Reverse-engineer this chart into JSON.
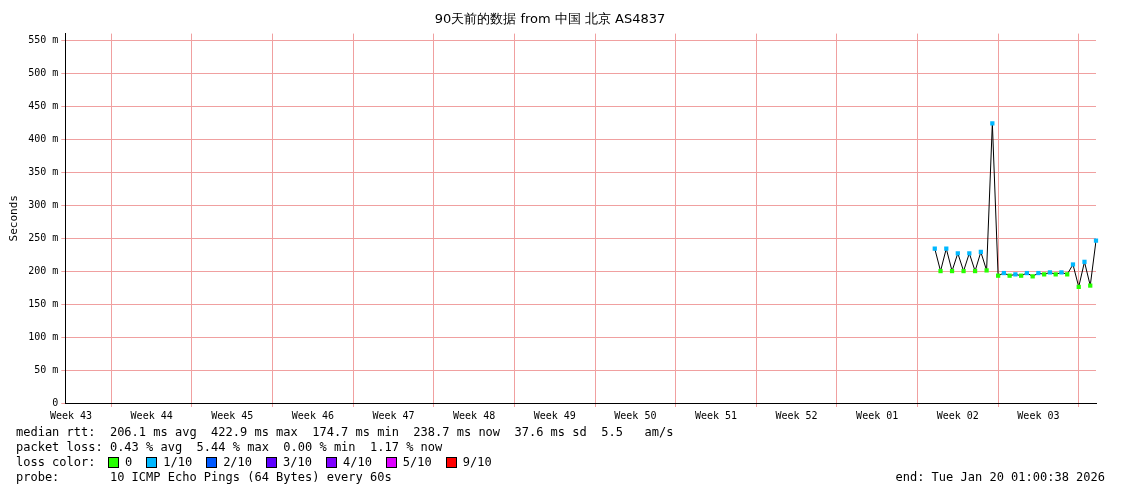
{
  "chart_data": {
    "type": "line",
    "title": "90天前的数据 from 中国 北京 AS4837",
    "ylabel": "Seconds",
    "categories": [
      null,
      "Week 43",
      null,
      null,
      null,
      null,
      null,
      null,
      null,
      null,
      null,
      null,
      null,
      null,
      null,
      "Week 44",
      null,
      null,
      null,
      null,
      null,
      null,
      null,
      null,
      null,
      null,
      null,
      null,
      null,
      "Week 45",
      null,
      null,
      null,
      null,
      null,
      null,
      null,
      null,
      null,
      null,
      null,
      null,
      null,
      "Week 46",
      null,
      null,
      null,
      null,
      null,
      null,
      null,
      null,
      null,
      null,
      null,
      null,
      null,
      "Week 47",
      null,
      null,
      null,
      null,
      null,
      null,
      null,
      null,
      null,
      null,
      null,
      null,
      null,
      "Week 48",
      null,
      null,
      null,
      null,
      null,
      null,
      null,
      null,
      null,
      null,
      null,
      null,
      null,
      "Week 49",
      null,
      null,
      null,
      null,
      null,
      null,
      null,
      null,
      null,
      null,
      null,
      null,
      null,
      "Week 50",
      null,
      null,
      null,
      null,
      null,
      null,
      null,
      null,
      null,
      null,
      null,
      null,
      null,
      "Week 51",
      null,
      null,
      null,
      null,
      null,
      null,
      null,
      null,
      null,
      null,
      null,
      null,
      null,
      "Week 52",
      null,
      null,
      null,
      null,
      null,
      null,
      null,
      null,
      null,
      null,
      null,
      null,
      null,
      "Week 01",
      null,
      null,
      null,
      null,
      null,
      null,
      null,
      null,
      null,
      null,
      null,
      null,
      null,
      "Week 02",
      null,
      null,
      null,
      null,
      null,
      null,
      null,
      null,
      null,
      null,
      null,
      null,
      null,
      "Week 03",
      null,
      null,
      null,
      null,
      null,
      null,
      null,
      null,
      null,
      null
    ],
    "ylim": [
      0,
      560
    ],
    "yticks": [
      0,
      {
        "value": 50,
        "label": "50 m"
      },
      {
        "value": 100,
        "label": "100 m"
      },
      {
        "value": 150,
        "label": "150 m"
      },
      {
        "value": 200,
        "label": "200 m"
      },
      {
        "value": 250,
        "label": "250 m"
      },
      {
        "value": 300,
        "label": "300 m"
      },
      {
        "value": 350,
        "label": "350 m"
      },
      {
        "value": 400,
        "label": "400 m"
      },
      {
        "value": 450,
        "label": "450 m"
      },
      {
        "value": 500,
        "label": "500 m"
      },
      {
        "value": 550,
        "label": "550 m"
      }
    ],
    "grid": true,
    "legend": "bottom",
    "legend_title": "loss color:",
    "series": [
      {
        "type": "line",
        "color": "#000000",
        "marker": "none",
        "values": [
          null,
          null,
          null,
          null,
          null,
          null,
          null,
          null,
          null,
          null,
          null,
          null,
          null,
          null,
          null,
          null,
          null,
          null,
          null,
          null,
          null,
          null,
          null,
          null,
          null,
          null,
          null,
          null,
          null,
          null,
          null,
          null,
          null,
          null,
          null,
          null,
          null,
          null,
          null,
          null,
          null,
          null,
          null,
          null,
          null,
          null,
          null,
          null,
          null,
          null,
          null,
          null,
          null,
          null,
          null,
          null,
          null,
          null,
          null,
          null,
          null,
          null,
          null,
          null,
          null,
          null,
          null,
          null,
          null,
          null,
          null,
          null,
          null,
          null,
          null,
          null,
          null,
          null,
          null,
          null,
          null,
          null,
          null,
          null,
          null,
          null,
          null,
          null,
          null,
          null,
          null,
          null,
          null,
          null,
          null,
          null,
          null,
          null,
          null,
          null,
          null,
          null,
          null,
          null,
          null,
          null,
          null,
          null,
          null,
          null,
          null,
          null,
          null,
          null,
          null,
          null,
          null,
          null,
          null,
          null,
          null,
          null,
          null,
          null,
          null,
          null,
          null,
          null,
          null,
          null,
          null,
          null,
          null,
          null,
          null,
          null,
          null,
          null,
          null,
          null,
          null,
          null,
          null,
          null,
          null,
          null,
          null,
          null,
          null,
          null,
          null,
          234,
          200,
          234,
          200,
          227,
          200,
          227,
          200,
          229,
          201,
          424,
          193,
          197,
          193,
          195,
          193,
          197,
          192,
          197,
          195,
          198,
          195,
          198,
          195,
          210,
          176,
          214,
          178,
          246
        ]
      },
      {
        "type": "scatter",
        "name": "0",
        "color": "#26ff00",
        "marker": "square",
        "values": [
          null,
          null,
          null,
          null,
          null,
          null,
          null,
          null,
          null,
          null,
          null,
          null,
          null,
          null,
          null,
          null,
          null,
          null,
          null,
          null,
          null,
          null,
          null,
          null,
          null,
          null,
          null,
          null,
          null,
          null,
          null,
          null,
          null,
          null,
          null,
          null,
          null,
          null,
          null,
          null,
          null,
          null,
          null,
          null,
          null,
          null,
          null,
          null,
          null,
          null,
          null,
          null,
          null,
          null,
          null,
          null,
          null,
          null,
          null,
          null,
          null,
          null,
          null,
          null,
          null,
          null,
          null,
          null,
          null,
          null,
          null,
          null,
          null,
          null,
          null,
          null,
          null,
          null,
          null,
          null,
          null,
          null,
          null,
          null,
          null,
          null,
          null,
          null,
          null,
          null,
          null,
          null,
          null,
          null,
          null,
          null,
          null,
          null,
          null,
          null,
          null,
          null,
          null,
          null,
          null,
          null,
          null,
          null,
          null,
          null,
          null,
          null,
          null,
          null,
          null,
          null,
          null,
          null,
          null,
          null,
          null,
          null,
          null,
          null,
          null,
          null,
          null,
          null,
          null,
          null,
          null,
          null,
          null,
          null,
          null,
          null,
          null,
          null,
          null,
          null,
          null,
          null,
          null,
          null,
          null,
          null,
          null,
          null,
          null,
          null,
          null,
          null,
          200,
          null,
          200,
          null,
          200,
          null,
          200,
          null,
          201,
          null,
          193,
          null,
          193,
          null,
          193,
          null,
          192,
          null,
          195,
          null,
          195,
          null,
          195,
          null,
          176,
          null,
          178,
          null
        ]
      },
      {
        "type": "scatter",
        "name": "1/10",
        "color": "#00b8ff",
        "marker": "square",
        "values": [
          null,
          null,
          null,
          null,
          null,
          null,
          null,
          null,
          null,
          null,
          null,
          null,
          null,
          null,
          null,
          null,
          null,
          null,
          null,
          null,
          null,
          null,
          null,
          null,
          null,
          null,
          null,
          null,
          null,
          null,
          null,
          null,
          null,
          null,
          null,
          null,
          null,
          null,
          null,
          null,
          null,
          null,
          null,
          null,
          null,
          null,
          null,
          null,
          null,
          null,
          null,
          null,
          null,
          null,
          null,
          null,
          null,
          null,
          null,
          null,
          null,
          null,
          null,
          null,
          null,
          null,
          null,
          null,
          null,
          null,
          null,
          null,
          null,
          null,
          null,
          null,
          null,
          null,
          null,
          null,
          null,
          null,
          null,
          null,
          null,
          null,
          null,
          null,
          null,
          null,
          null,
          null,
          null,
          null,
          null,
          null,
          null,
          null,
          null,
          null,
          null,
          null,
          null,
          null,
          null,
          null,
          null,
          null,
          null,
          null,
          null,
          null,
          null,
          null,
          null,
          null,
          null,
          null,
          null,
          null,
          null,
          null,
          null,
          null,
          null,
          null,
          null,
          null,
          null,
          null,
          null,
          null,
          null,
          null,
          null,
          null,
          null,
          null,
          null,
          null,
          null,
          null,
          null,
          null,
          null,
          null,
          null,
          null,
          null,
          null,
          null,
          234,
          null,
          234,
          null,
          227,
          null,
          227,
          null,
          229,
          null,
          424,
          null,
          197,
          null,
          195,
          null,
          197,
          null,
          197,
          null,
          198,
          null,
          198,
          null,
          210,
          null,
          214,
          null,
          246
        ]
      },
      {
        "type": "scatter",
        "name": "2/10",
        "color": "#0059ff",
        "marker": "square",
        "values": [
          null,
          null,
          null,
          null,
          null,
          null,
          null,
          null,
          null,
          null,
          null,
          null,
          null,
          null,
          null,
          null,
          null,
          null,
          null,
          null,
          null,
          null,
          null,
          null,
          null,
          null,
          null,
          null,
          null,
          null,
          null,
          null,
          null,
          null,
          null,
          null,
          null,
          null,
          null,
          null,
          null,
          null,
          null,
          null,
          null,
          null,
          null,
          null,
          null,
          null,
          null,
          null,
          null,
          null,
          null,
          null,
          null,
          null,
          null,
          null,
          null,
          null,
          null,
          null,
          null,
          null,
          null,
          null,
          null,
          null,
          null,
          null,
          null,
          null,
          null,
          null,
          null,
          null,
          null,
          null,
          null,
          null,
          null,
          null,
          null,
          null,
          null,
          null,
          null,
          null,
          null,
          null,
          null,
          null,
          null,
          null,
          null,
          null,
          null,
          null,
          null,
          null,
          null,
          null,
          null,
          null,
          null,
          null,
          null,
          null,
          null,
          null,
          null,
          null,
          null,
          null,
          null,
          null,
          null,
          null,
          null,
          null,
          null,
          null,
          null,
          null,
          null,
          null,
          null,
          null,
          null,
          null,
          null,
          null,
          null,
          null,
          null,
          null,
          null,
          null,
          null,
          null,
          null,
          null,
          null,
          null,
          null,
          null,
          null,
          null,
          null,
          null,
          null,
          null,
          null,
          null,
          null,
          null,
          null,
          null,
          null,
          null,
          null,
          null,
          null,
          null,
          null,
          null,
          null,
          null,
          null,
          null,
          null,
          null,
          null,
          null,
          null,
          null,
          null,
          null
        ]
      },
      {
        "type": "scatter",
        "name": "3/10",
        "color": "#5e00ff",
        "marker": "square",
        "values": [
          null,
          null,
          null,
          null,
          null,
          null,
          null,
          null,
          null,
          null,
          null,
          null,
          null,
          null,
          null,
          null,
          null,
          null,
          null,
          null,
          null,
          null,
          null,
          null,
          null,
          null,
          null,
          null,
          null,
          null,
          null,
          null,
          null,
          null,
          null,
          null,
          null,
          null,
          null,
          null,
          null,
          null,
          null,
          null,
          null,
          null,
          null,
          null,
          null,
          null,
          null,
          null,
          null,
          null,
          null,
          null,
          null,
          null,
          null,
          null,
          null,
          null,
          null,
          null,
          null,
          null,
          null,
          null,
          null,
          null,
          null,
          null,
          null,
          null,
          null,
          null,
          null,
          null,
          null,
          null,
          null,
          null,
          null,
          null,
          null,
          null,
          null,
          null,
          null,
          null,
          null,
          null,
          null,
          null,
          null,
          null,
          null,
          null,
          null,
          null,
          null,
          null,
          null,
          null,
          null,
          null,
          null,
          null,
          null,
          null,
          null,
          null,
          null,
          null,
          null,
          null,
          null,
          null,
          null,
          null,
          null,
          null,
          null,
          null,
          null,
          null,
          null,
          null,
          null,
          null,
          null,
          null,
          null,
          null,
          null,
          null,
          null,
          null,
          null,
          null,
          null,
          null,
          null,
          null,
          null,
          null,
          null,
          null,
          null,
          null,
          null,
          null,
          null,
          null,
          null,
          null,
          null,
          null,
          null,
          null,
          null,
          null,
          null,
          null,
          null,
          null,
          null,
          null,
          null,
          null,
          null,
          null,
          null,
          null,
          null,
          null,
          null,
          null,
          null,
          null
        ]
      },
      {
        "type": "scatter",
        "name": "4/10",
        "color": "#7e00ff",
        "marker": "square",
        "values": [
          null,
          null,
          null,
          null,
          null,
          null,
          null,
          null,
          null,
          null,
          null,
          null,
          null,
          null,
          null,
          null,
          null,
          null,
          null,
          null,
          null,
          null,
          null,
          null,
          null,
          null,
          null,
          null,
          null,
          null,
          null,
          null,
          null,
          null,
          null,
          null,
          null,
          null,
          null,
          null,
          null,
          null,
          null,
          null,
          null,
          null,
          null,
          null,
          null,
          null,
          null,
          null,
          null,
          null,
          null,
          null,
          null,
          null,
          null,
          null,
          null,
          null,
          null,
          null,
          null,
          null,
          null,
          null,
          null,
          null,
          null,
          null,
          null,
          null,
          null,
          null,
          null,
          null,
          null,
          null,
          null,
          null,
          null,
          null,
          null,
          null,
          null,
          null,
          null,
          null,
          null,
          null,
          null,
          null,
          null,
          null,
          null,
          null,
          null,
          null,
          null,
          null,
          null,
          null,
          null,
          null,
          null,
          null,
          null,
          null,
          null,
          null,
          null,
          null,
          null,
          null,
          null,
          null,
          null,
          null,
          null,
          null,
          null,
          null,
          null,
          null,
          null,
          null,
          null,
          null,
          null,
          null,
          null,
          null,
          null,
          null,
          null,
          null,
          null,
          null,
          null,
          null,
          null,
          null,
          null,
          null,
          null,
          null,
          null,
          null,
          null,
          null,
          null,
          null,
          null,
          null,
          null,
          null,
          null,
          null,
          null,
          null,
          null,
          null,
          null,
          null,
          null,
          null,
          null,
          null,
          null,
          null,
          null,
          null,
          null,
          null,
          null,
          null,
          null,
          null
        ]
      },
      {
        "type": "scatter",
        "name": "5/10",
        "color": "#dd00ff",
        "marker": "square",
        "values": [
          null,
          null,
          null,
          null,
          null,
          null,
          null,
          null,
          null,
          null,
          null,
          null,
          null,
          null,
          null,
          null,
          null,
          null,
          null,
          null,
          null,
          null,
          null,
          null,
          null,
          null,
          null,
          null,
          null,
          null,
          null,
          null,
          null,
          null,
          null,
          null,
          null,
          null,
          null,
          null,
          null,
          null,
          null,
          null,
          null,
          null,
          null,
          null,
          null,
          null,
          null,
          null,
          null,
          null,
          null,
          null,
          null,
          null,
          null,
          null,
          null,
          null,
          null,
          null,
          null,
          null,
          null,
          null,
          null,
          null,
          null,
          null,
          null,
          null,
          null,
          null,
          null,
          null,
          null,
          null,
          null,
          null,
          null,
          null,
          null,
          null,
          null,
          null,
          null,
          null,
          null,
          null,
          null,
          null,
          null,
          null,
          null,
          null,
          null,
          null,
          null,
          null,
          null,
          null,
          null,
          null,
          null,
          null,
          null,
          null,
          null,
          null,
          null,
          null,
          null,
          null,
          null,
          null,
          null,
          null,
          null,
          null,
          null,
          null,
          null,
          null,
          null,
          null,
          null,
          null,
          null,
          null,
          null,
          null,
          null,
          null,
          null,
          null,
          null,
          null,
          null,
          null,
          null,
          null,
          null,
          null,
          null,
          null,
          null,
          null,
          null,
          null,
          null,
          null,
          null,
          null,
          null,
          null,
          null,
          null,
          null,
          null,
          null,
          null,
          null,
          null,
          null,
          null,
          null,
          null,
          null,
          null,
          null,
          null,
          null,
          null,
          null,
          null,
          null,
          null
        ]
      },
      {
        "type": "scatter",
        "name": "9/10",
        "color": "#ff0000",
        "marker": "square",
        "values": [
          null,
          null,
          null,
          null,
          null,
          null,
          null,
          null,
          null,
          null,
          null,
          null,
          null,
          null,
          null,
          null,
          null,
          null,
          null,
          null,
          null,
          null,
          null,
          null,
          null,
          null,
          null,
          null,
          null,
          null,
          null,
          null,
          null,
          null,
          null,
          null,
          null,
          null,
          null,
          null,
          null,
          null,
          null,
          null,
          null,
          null,
          null,
          null,
          null,
          null,
          null,
          null,
          null,
          null,
          null,
          null,
          null,
          null,
          null,
          null,
          null,
          null,
          null,
          null,
          null,
          null,
          null,
          null,
          null,
          null,
          null,
          null,
          null,
          null,
          null,
          null,
          null,
          null,
          null,
          null,
          null,
          null,
          null,
          null,
          null,
          null,
          null,
          null,
          null,
          null,
          null,
          null,
          null,
          null,
          null,
          null,
          null,
          null,
          null,
          null,
          null,
          null,
          null,
          null,
          null,
          null,
          null,
          null,
          null,
          null,
          null,
          null,
          null,
          null,
          null,
          null,
          null,
          null,
          null,
          null,
          null,
          null,
          null,
          null,
          null,
          null,
          null,
          null,
          null,
          null,
          null,
          null,
          null,
          null,
          null,
          null,
          null,
          null,
          null,
          null,
          null,
          null,
          null,
          null,
          null,
          null,
          null,
          null,
          null,
          null,
          null,
          null,
          null,
          null,
          null,
          null,
          null,
          null,
          null,
          null,
          null,
          null,
          null,
          null,
          null,
          null,
          null,
          null,
          null,
          null,
          null,
          null,
          null,
          null,
          null,
          null,
          null,
          null,
          null,
          null
        ]
      }
    ],
    "annotations": [
      "median rtt:  206.1 ms avg  422.9 ms max  174.7 ms min  238.7 ms now  37.6 ms sd  5.5   am/s",
      "packet loss: 0.43 % avg  5.44 % max  0.00 % min  1.17 % now",
      "probe:       10 ICMP Echo Pings (64 Bytes) every 60s",
      "end: Tue Jan 20 01:00:38 2026"
    ]
  }
}
